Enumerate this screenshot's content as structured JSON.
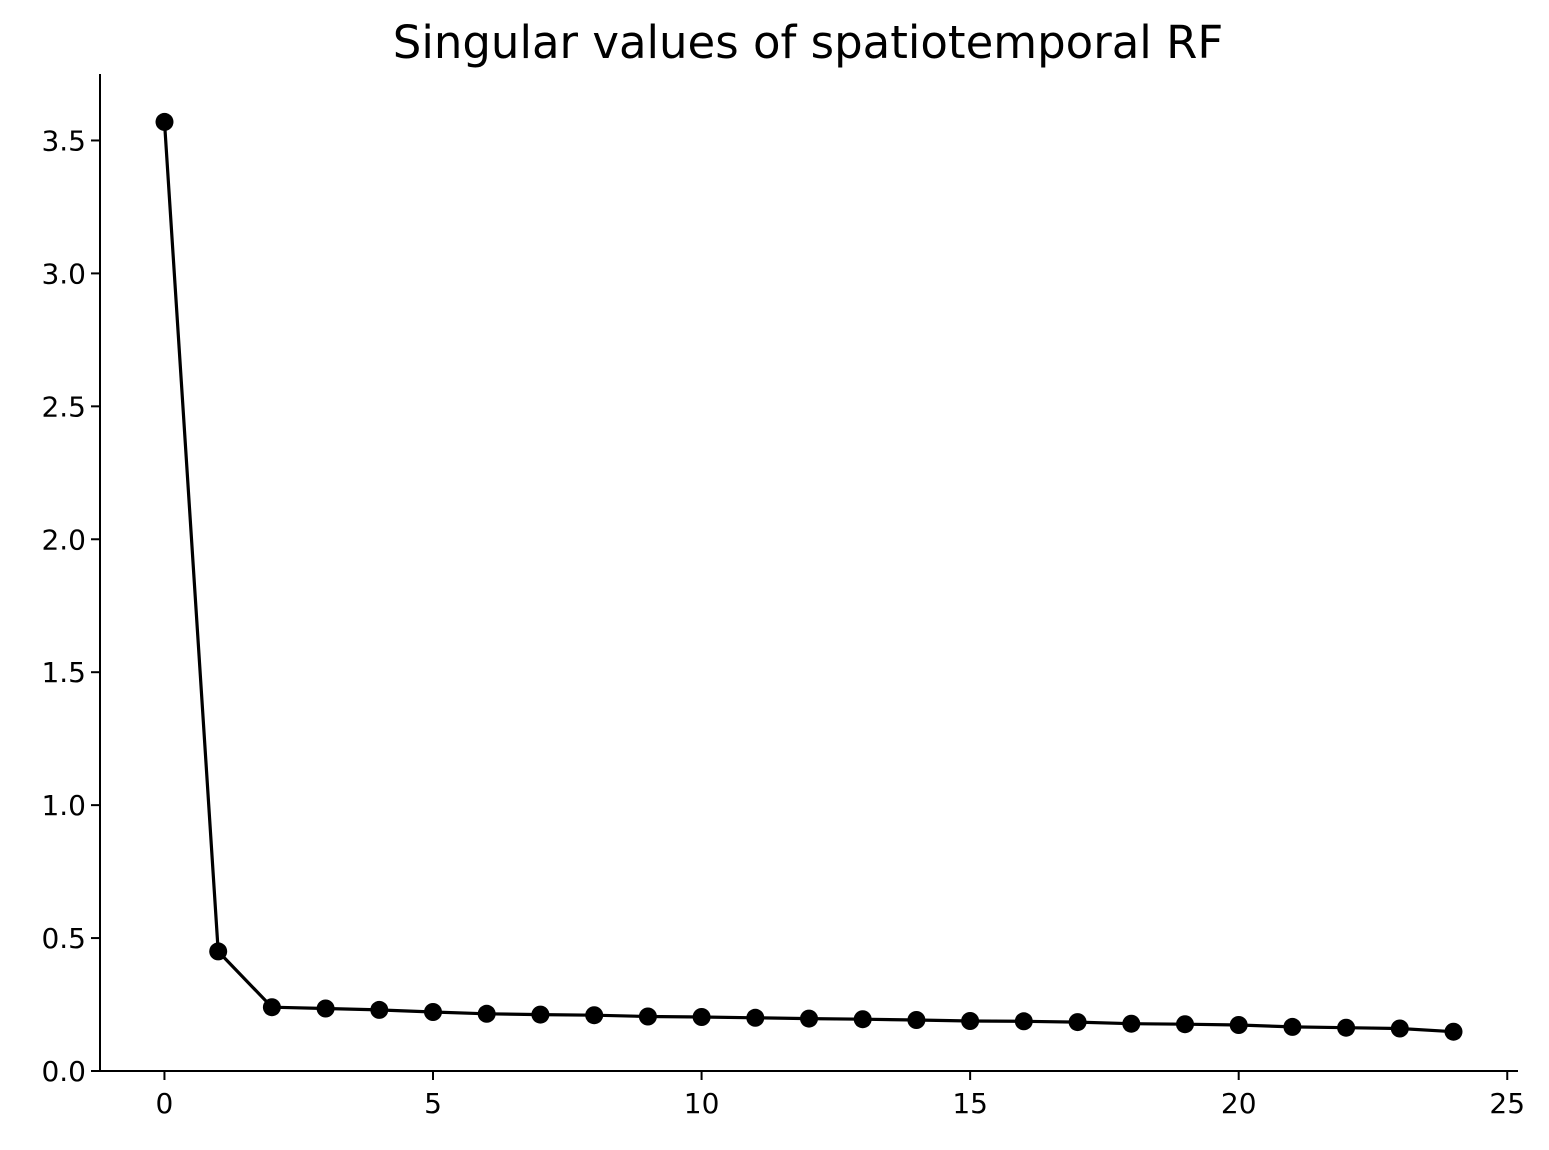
{
  "chart_data": {
    "type": "line",
    "title": "Singular values of spatiotemporal RF",
    "xlabel": "",
    "ylabel": "",
    "xlim": [
      -1.2,
      25.2
    ],
    "ylim": [
      0.0,
      3.75
    ],
    "xticks": [
      0,
      5,
      10,
      15,
      20,
      25
    ],
    "xtick_labels": [
      "0",
      "5",
      "10",
      "15",
      "20",
      "25"
    ],
    "yticks": [
      0.0,
      0.5,
      1.0,
      1.5,
      2.0,
      2.5,
      3.0,
      3.5
    ],
    "ytick_labels": [
      "0.0",
      "0.5",
      "1.0",
      "1.5",
      "2.0",
      "2.5",
      "3.0",
      "3.5"
    ],
    "grid": false,
    "legend": "none",
    "series": [
      {
        "color": "#000000",
        "marker": "circle",
        "x": [
          0,
          1,
          2,
          3,
          4,
          5,
          6,
          7,
          8,
          9,
          10,
          11,
          12,
          13,
          14,
          15,
          16,
          17,
          18,
          19,
          20,
          21,
          22,
          23,
          24
        ],
        "values": [
          3.57,
          0.45,
          0.24,
          0.235,
          0.23,
          0.222,
          0.215,
          0.212,
          0.21,
          0.205,
          0.203,
          0.2,
          0.197,
          0.195,
          0.192,
          0.188,
          0.187,
          0.184,
          0.178,
          0.176,
          0.173,
          0.166,
          0.163,
          0.16,
          0.148
        ]
      }
    ]
  }
}
